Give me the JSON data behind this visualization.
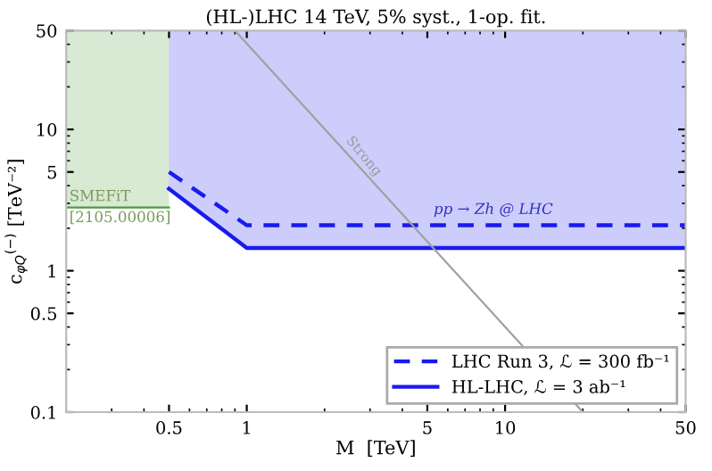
{
  "chart_data": {
    "type": "line",
    "title": "(HL-)LHC 14 TeV, 5% syst., 1-op. fit.",
    "xlabel": "M  [TeV]",
    "ylabel": "c$_{φQ}$$^{(−)}$ [TeV⁻²]",
    "log": "xy",
    "xlim": [
      0.2,
      50
    ],
    "ylim": [
      0.1,
      50
    ],
    "xticks": [
      0.5,
      1,
      5,
      10,
      50
    ],
    "yticks": [
      0.1,
      0.5,
      1,
      5,
      10,
      50
    ],
    "grid": false,
    "legend": "bottom right",
    "series": [
      {
        "color": "#4f9a3c",
        "x": [
          0.2,
          0.5
        ],
        "values": [
          2.8,
          2.8
        ],
        "lower": [
          2.8,
          2.8
        ],
        "upper": [
          50,
          50
        ]
      },
      {
        "name": "HL-LHC, ℒ = 3 ab⁻¹",
        "color": "#1a1aee",
        "x": [
          0.5,
          1,
          50
        ],
        "values": [
          3.8,
          1.45,
          1.45
        ],
        "lower": [
          3.8,
          1.45,
          1.45
        ],
        "upper": [
          50,
          50,
          50
        ]
      },
      {
        "name": "LHC Run 3, ℒ = 300 fb⁻¹",
        "color": "#1a1aee",
        "line_style": "dashed",
        "x": [
          0.5,
          1,
          50
        ],
        "values": [
          5.0,
          2.1,
          2.1
        ]
      },
      {
        "color": "#a0a0a0",
        "x": [
          0.9,
          20
        ],
        "values": [
          50,
          0.1
        ]
      }
    ],
    "annotations": [
      "SMEFiT\n[2105.00006]",
      {
        "text": "pp → Zh @ LHC",
        "x": 9,
        "y": 2.4
      },
      "Strong"
    ]
  }
}
